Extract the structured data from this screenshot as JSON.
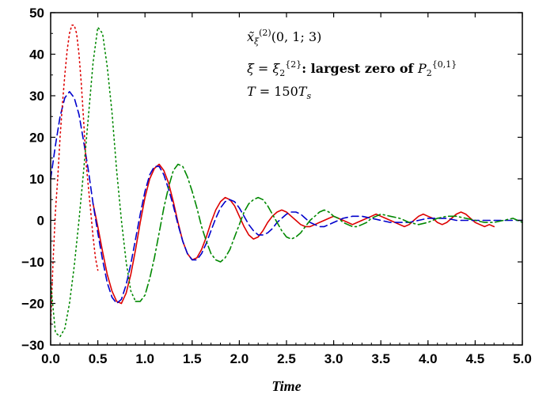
{
  "chart_data": {
    "type": "line",
    "title": "",
    "xlabel": "Time",
    "ylabel": "",
    "xlim": [
      0,
      5
    ],
    "ylim": [
      -30,
      50
    ],
    "xticks": [
      "0.0",
      "0.5",
      "1.0",
      "1.5",
      "2.0",
      "2.5",
      "3.0",
      "3.5",
      "4.0",
      "4.5",
      "5.0"
    ],
    "yticks": [
      "50",
      "40",
      "30",
      "20",
      "10",
      "0",
      "−10",
      "−20",
      "−30"
    ],
    "grid": false,
    "legend": "none",
    "annotations": [
      {
        "id": "line1",
        "parts": [
          {
            "t": "x̃",
            "style": "it"
          },
          {
            "t": "ξ",
            "style": "it sub"
          },
          {
            "t": "(2)",
            "style": "sup"
          },
          {
            "t": "(0, 1; 3)",
            "style": ""
          }
        ]
      },
      {
        "id": "line2",
        "parts": [
          {
            "t": "ξ",
            "style": "it"
          },
          {
            "t": " = ",
            "style": ""
          },
          {
            "t": "ξ",
            "style": "it"
          },
          {
            "t": "2",
            "style": "sub"
          },
          {
            "t": "{2}",
            "style": "sup"
          },
          {
            "t": ": largest zero of ",
            "style": "b"
          },
          {
            "t": "P",
            "style": "it"
          },
          {
            "t": "2",
            "style": "sub"
          },
          {
            "t": "{0,1}",
            "style": "sup"
          }
        ]
      },
      {
        "id": "line3",
        "parts": [
          {
            "t": "T",
            "style": "it"
          },
          {
            "t": " = 150",
            "style": ""
          },
          {
            "t": "T",
            "style": "it"
          },
          {
            "t": "s",
            "style": "it sub"
          }
        ]
      }
    ],
    "series": [
      {
        "style": "solid",
        "color": "#dd0000",
        "x": [
          0.45,
          0.5,
          0.55,
          0.6,
          0.65,
          0.7,
          0.75,
          0.8,
          0.85,
          0.9,
          0.95,
          1.0,
          1.05,
          1.1,
          1.15,
          1.2,
          1.25,
          1.3,
          1.35,
          1.4,
          1.45,
          1.5,
          1.55,
          1.6,
          1.65,
          1.7,
          1.75,
          1.8,
          1.85,
          1.9,
          1.95,
          2.0,
          2.05,
          2.1,
          2.15,
          2.2,
          2.25,
          2.3,
          2.35,
          2.4,
          2.45,
          2.5,
          2.55,
          2.6,
          2.65,
          2.7,
          2.75,
          2.8,
          2.85,
          2.9,
          2.95,
          3.0,
          3.05,
          3.1,
          3.15,
          3.2,
          3.25,
          3.3,
          3.35,
          3.4,
          3.45,
          3.5,
          3.55,
          3.6,
          3.65,
          3.7,
          3.75,
          3.8,
          3.85,
          3.9,
          3.95,
          4.0,
          4.05,
          4.1,
          4.15,
          4.2,
          4.25,
          4.3,
          4.35,
          4.4,
          4.45,
          4.5,
          4.55,
          4.6,
          4.65,
          4.7
        ],
        "y": [
          4.0,
          -1.5,
          -7.5,
          -13.0,
          -17.0,
          -19.5,
          -20.0,
          -17.5,
          -13.0,
          -7.0,
          -0.5,
          5.5,
          10.0,
          12.5,
          13.5,
          12.0,
          9.0,
          4.5,
          -0.5,
          -5.0,
          -8.0,
          -9.5,
          -9.0,
          -7.0,
          -4.0,
          -0.5,
          2.5,
          4.5,
          5.5,
          5.0,
          3.5,
          1.0,
          -1.5,
          -3.5,
          -4.5,
          -4.0,
          -2.5,
          -0.5,
          1.0,
          2.0,
          2.5,
          2.0,
          1.0,
          0.0,
          -1.0,
          -1.5,
          -1.5,
          -1.0,
          -0.5,
          0.0,
          0.5,
          1.0,
          0.5,
          0.0,
          -0.5,
          -1.0,
          -0.5,
          0.0,
          0.5,
          1.0,
          1.5,
          1.0,
          0.5,
          0.0,
          -0.5,
          -1.0,
          -1.5,
          -1.0,
          0.0,
          1.0,
          1.5,
          1.0,
          0.5,
          -0.5,
          -1.0,
          -0.5,
          0.5,
          1.5,
          2.0,
          1.5,
          0.5,
          -0.5,
          -1.0,
          -1.5,
          -1.0,
          -1.5
        ]
      },
      {
        "style": "dashed",
        "color": "#0000cc",
        "x": [
          0.0,
          0.05,
          0.1,
          0.15,
          0.2,
          0.25,
          0.3,
          0.35,
          0.4,
          0.45,
          0.5,
          0.55,
          0.6,
          0.65,
          0.7,
          0.75,
          0.8,
          0.85,
          0.9,
          0.95,
          1.0,
          1.05,
          1.1,
          1.15,
          1.2,
          1.25,
          1.3,
          1.35,
          1.4,
          1.45,
          1.5,
          1.55,
          1.6,
          1.65,
          1.7,
          1.75,
          1.8,
          1.85,
          1.9,
          1.95,
          2.0,
          2.05,
          2.1,
          2.15,
          2.2,
          2.25,
          2.3,
          2.35,
          2.4,
          2.45,
          2.5,
          2.55,
          2.6,
          2.65,
          2.7,
          2.75,
          2.8,
          2.85,
          2.9,
          2.95,
          3.0,
          3.1,
          3.2,
          3.3,
          3.4,
          3.5,
          3.6,
          3.7,
          3.8,
          3.9,
          4.0,
          4.1,
          4.2,
          4.3,
          4.4,
          4.5,
          4.6,
          4.7,
          4.8,
          4.9,
          5.0
        ],
        "y": [
          10.0,
          18.0,
          25.0,
          29.5,
          31.0,
          29.5,
          25.5,
          19.0,
          12.0,
          4.0,
          -3.0,
          -9.5,
          -15.0,
          -18.5,
          -20.0,
          -19.0,
          -15.5,
          -10.5,
          -4.5,
          1.5,
          7.0,
          11.0,
          13.0,
          13.0,
          11.0,
          7.5,
          3.5,
          -1.0,
          -5.0,
          -8.0,
          -9.5,
          -9.5,
          -8.0,
          -5.5,
          -2.5,
          0.5,
          3.0,
          4.5,
          5.0,
          4.5,
          3.0,
          1.0,
          -1.0,
          -2.5,
          -3.5,
          -3.5,
          -3.0,
          -2.0,
          -0.5,
          0.5,
          1.5,
          2.0,
          2.0,
          1.5,
          0.5,
          -0.5,
          -1.0,
          -1.5,
          -1.5,
          -1.0,
          -0.5,
          0.5,
          1.0,
          1.0,
          0.5,
          0.0,
          -0.5,
          -0.5,
          -0.5,
          0.0,
          0.5,
          0.5,
          0.5,
          0.0,
          0.0,
          0.0,
          0.0,
          0.0,
          0.0,
          0.0,
          0.0
        ]
      },
      {
        "style": "dotted",
        "color": "#dd0000",
        "x": [
          0.0,
          0.025,
          0.05,
          0.075,
          0.1,
          0.125,
          0.15,
          0.175,
          0.2,
          0.225,
          0.25,
          0.275,
          0.3,
          0.325,
          0.35,
          0.375,
          0.4,
          0.425,
          0.45,
          0.475,
          0.5
        ],
        "y": [
          -25.0,
          -10.0,
          2.0,
          10.0,
          20.0,
          28.0,
          35.0,
          41.0,
          45.0,
          47.0,
          47.0,
          45.0,
          40.0,
          33.0,
          24.0,
          14.0,
          8.0,
          2.0,
          -4.0,
          -9.0,
          -12.0
        ]
      },
      {
        "style": "dotted",
        "color": "#008800",
        "x": [
          0.0,
          0.05,
          0.1,
          0.15,
          0.2,
          0.25,
          0.3,
          0.35,
          0.4,
          0.45,
          0.5,
          0.55,
          0.6,
          0.65,
          0.7,
          0.75,
          0.8,
          0.85,
          0.9
        ],
        "y": [
          -15.0,
          -27.0,
          -28.0,
          -26.0,
          -20.0,
          -11.0,
          0.0,
          12.0,
          25.0,
          38.0,
          46.5,
          45.0,
          37.0,
          26.0,
          12.0,
          0.0,
          -10.0,
          -17.0,
          -19.5
        ]
      },
      {
        "style": "dashdot",
        "color": "#008800",
        "x": [
          0.9,
          0.95,
          1.0,
          1.05,
          1.1,
          1.15,
          1.2,
          1.25,
          1.3,
          1.35,
          1.4,
          1.45,
          1.5,
          1.55,
          1.6,
          1.65,
          1.7,
          1.75,
          1.8,
          1.85,
          1.9,
          1.95,
          2.0,
          2.05,
          2.1,
          2.15,
          2.2,
          2.25,
          2.3,
          2.35,
          2.4,
          2.45,
          2.5,
          2.55,
          2.6,
          2.65,
          2.7,
          2.75,
          2.8,
          2.85,
          2.9,
          2.95,
          3.0,
          3.05,
          3.1,
          3.15,
          3.2,
          3.25,
          3.3,
          3.35,
          3.4,
          3.45,
          3.5,
          3.6,
          3.7,
          3.8,
          3.9,
          4.0,
          4.1,
          4.2,
          4.3,
          4.4,
          4.5,
          4.6,
          4.7,
          4.8,
          4.9,
          5.0
        ],
        "y": [
          -19.5,
          -19.5,
          -18.0,
          -14.0,
          -9.0,
          -3.0,
          3.0,
          8.0,
          12.0,
          13.5,
          13.0,
          10.5,
          7.0,
          3.0,
          -1.5,
          -5.0,
          -8.0,
          -9.5,
          -10.0,
          -9.0,
          -7.0,
          -4.0,
          -1.0,
          2.0,
          4.0,
          5.0,
          5.5,
          5.0,
          3.5,
          1.5,
          -0.5,
          -2.5,
          -4.0,
          -4.5,
          -4.0,
          -3.0,
          -1.5,
          0.0,
          1.0,
          2.0,
          2.5,
          2.0,
          1.0,
          0.5,
          -0.5,
          -1.0,
          -1.5,
          -1.5,
          -1.0,
          -0.5,
          0.5,
          1.0,
          1.5,
          1.0,
          0.5,
          -0.5,
          -1.0,
          -0.5,
          0.5,
          1.0,
          1.0,
          0.5,
          0.0,
          -0.5,
          -0.5,
          0.0,
          0.5,
          -0.5
        ]
      }
    ]
  }
}
